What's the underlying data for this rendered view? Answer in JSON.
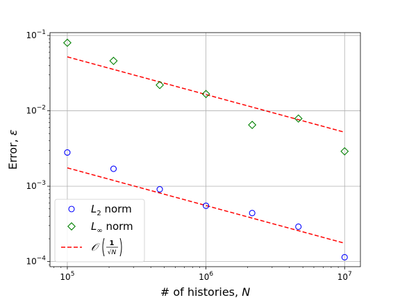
{
  "chart_data": {
    "type": "scatter",
    "x_scale": "log",
    "y_scale": "log",
    "xlabel": "# of histories, N",
    "ylabel": "Error, ε",
    "xlim": [
      75000,
      13000000
    ],
    "ylim": [
      8.55e-05,
      0.109
    ],
    "x_ticks": [
      {
        "value": 100000,
        "base": "10",
        "exp": "5"
      },
      {
        "value": 1000000,
        "base": "10",
        "exp": "6"
      },
      {
        "value": 10000000,
        "base": "10",
        "exp": "7"
      }
    ],
    "y_ticks": [
      {
        "value": 0.0001,
        "base": "10",
        "exp": "−4"
      },
      {
        "value": 0.001,
        "base": "10",
        "exp": "−3"
      },
      {
        "value": 0.01,
        "base": "10",
        "exp": "−2"
      },
      {
        "value": 0.1,
        "base": "10",
        "exp": "−1"
      }
    ],
    "grid": true,
    "legend_position": "lower-left",
    "series": [
      {
        "name": "L2 norm",
        "label_main": "L",
        "label_sub": "2",
        "label_rest": " norm",
        "marker": "circle",
        "color": "#0000ff",
        "x": [
          100000,
          215443,
          464159,
          1000000,
          2154435,
          4641589,
          10000000
        ],
        "y": [
          0.0028,
          0.0017,
          0.00091,
          0.00055,
          0.00044,
          0.00029,
          0.000114
        ]
      },
      {
        "name": "L∞ norm",
        "label_main": "L",
        "label_sub": "∞",
        "label_rest": " norm",
        "marker": "diamond",
        "color": "#008000",
        "x": [
          100000,
          215443,
          464159,
          1000000,
          2154435,
          4641589,
          10000000
        ],
        "y": [
          0.08,
          0.046,
          0.022,
          0.0167,
          0.0065,
          0.0079,
          0.0029
        ]
      }
    ],
    "reference_lines": [
      {
        "name": "O(1/√N)",
        "label": "𝒪",
        "label_num": "1",
        "label_den": "√N",
        "color": "#ff0000",
        "style": "dashed",
        "x": [
          100000,
          10000000
        ],
        "y_sets": [
          [
            0.00175,
            0.000175
          ],
          [
            0.052,
            0.0052
          ]
        ]
      }
    ]
  }
}
